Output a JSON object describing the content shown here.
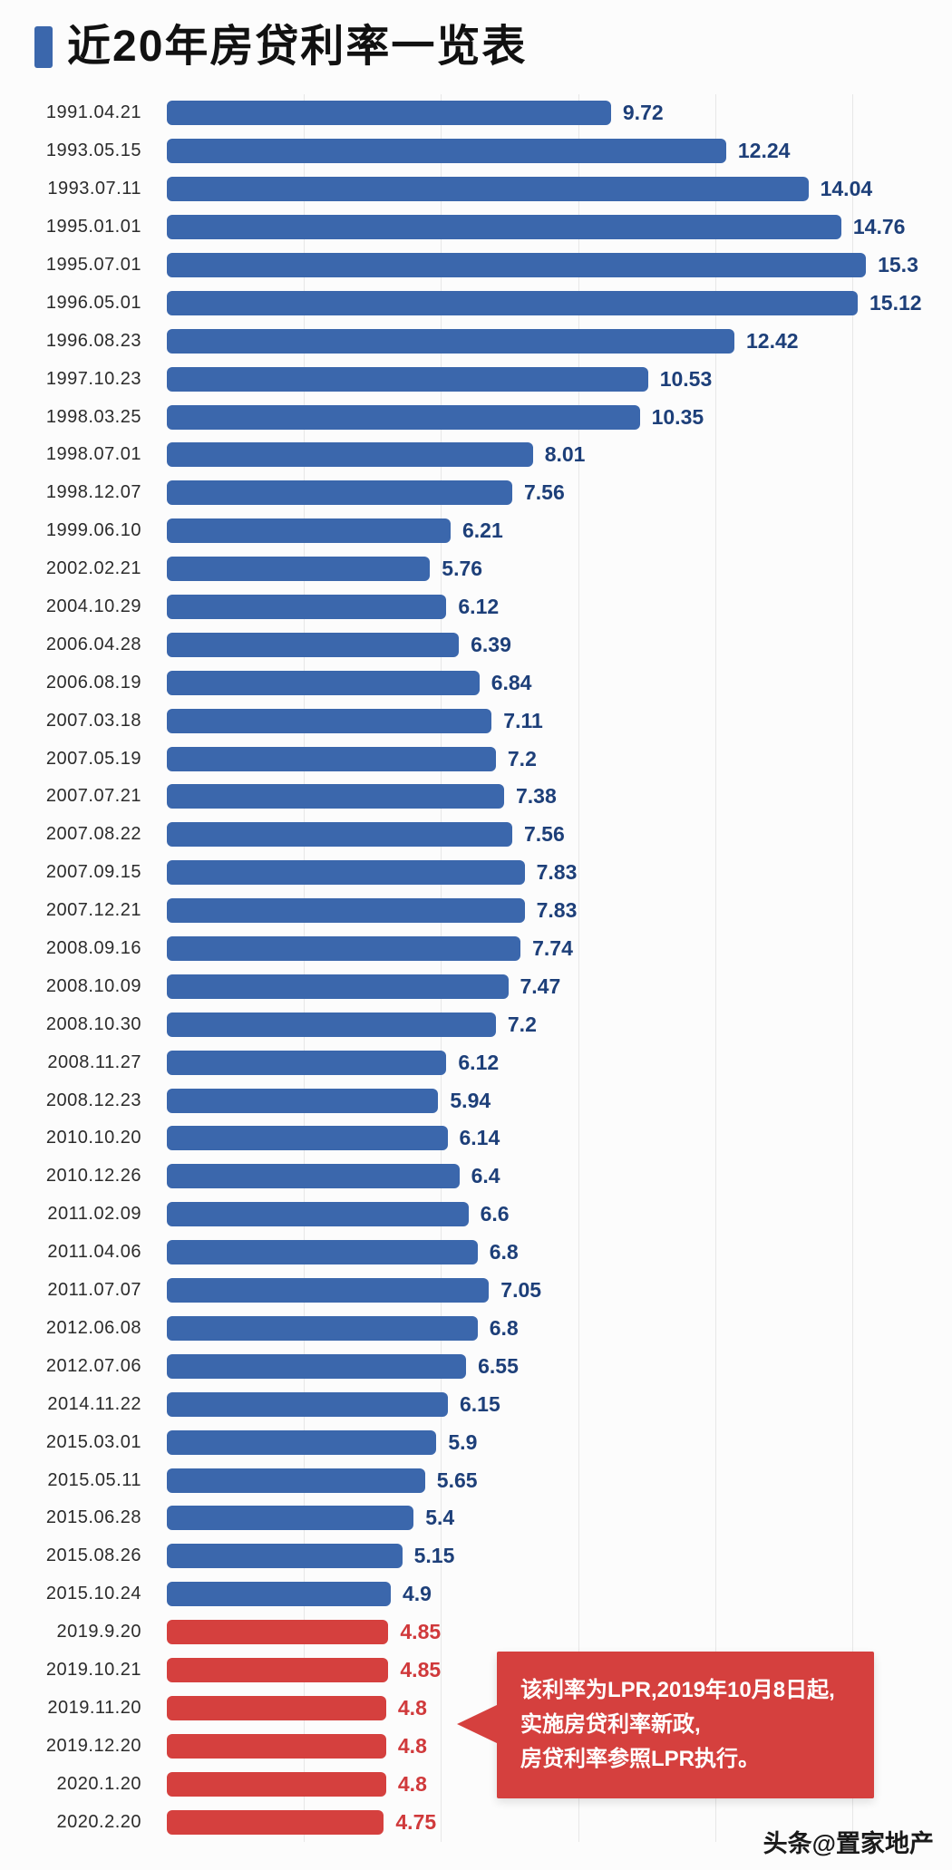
{
  "title": "近20年房贷利率一览表",
  "watermark": "头条@置家地产",
  "annotation": {
    "lines": [
      "该利率为LPR,2019年10月8日起,",
      "实施房贷利率新政,",
      "房贷利率参照LPR执行。"
    ]
  },
  "colors": {
    "blue": "#3b67ac",
    "red": "#d5403e",
    "blue_text": "#1d3f79",
    "red_text": "#d0393b",
    "grid": "#e7e7e7",
    "bg": "#fcfcfc",
    "date_text": "#2b2b2b",
    "title_text": "#111111",
    "watermark_text": "#1a1a1a"
  },
  "chart_data": {
    "type": "bar",
    "orientation": "horizontal",
    "title": "近20年房贷利率一览表",
    "xlabel": "",
    "ylabel": "",
    "xlim": [
      0,
      16
    ],
    "grid": true,
    "gridline_values": [
      3,
      6,
      9,
      12,
      15
    ],
    "categories": [
      "1991.04.21",
      "1993.05.15",
      "1993.07.11",
      "1995.01.01",
      "1995.07.01",
      "1996.05.01",
      "1996.08.23",
      "1997.10.23",
      "1998.03.25",
      "1998.07.01",
      "1998.12.07",
      "1999.06.10",
      "2002.02.21",
      "2004.10.29",
      "2006.04.28",
      "2006.08.19",
      "2007.03.18",
      "2007.05.19",
      "2007.07.21",
      "2007.08.22",
      "2007.09.15",
      "2007.12.21",
      "2008.09.16",
      "2008.10.09",
      "2008.10.30",
      "2008.11.27",
      "2008.12.23",
      "2010.10.20",
      "2010.12.26",
      "2011.02.09",
      "2011.04.06",
      "2011.07.07",
      "2012.06.08",
      "2012.07.06",
      "2014.11.22",
      "2015.03.01",
      "2015.05.11",
      "2015.06.28",
      "2015.08.26",
      "2015.10.24",
      "2019.9.20",
      "2019.10.21",
      "2019.11.20",
      "2019.12.20",
      "2020.1.20",
      "2020.2.20"
    ],
    "values": [
      9.72,
      12.24,
      14.04,
      14.76,
      15.3,
      15.12,
      12.42,
      10.53,
      10.35,
      8.01,
      7.56,
      6.21,
      5.76,
      6.12,
      6.39,
      6.84,
      7.11,
      7.2,
      7.38,
      7.56,
      7.83,
      7.83,
      7.74,
      7.47,
      7.2,
      6.12,
      5.94,
      6.14,
      6.4,
      6.6,
      6.8,
      7.05,
      6.8,
      6.55,
      6.15,
      5.9,
      5.65,
      5.4,
      5.15,
      4.9,
      4.85,
      4.85,
      4.8,
      4.8,
      4.8,
      4.75
    ],
    "red_from_index": 40,
    "series_note": "bars before index 40 are blue (benchmark rate), from index 40 on are red (LPR era)"
  }
}
